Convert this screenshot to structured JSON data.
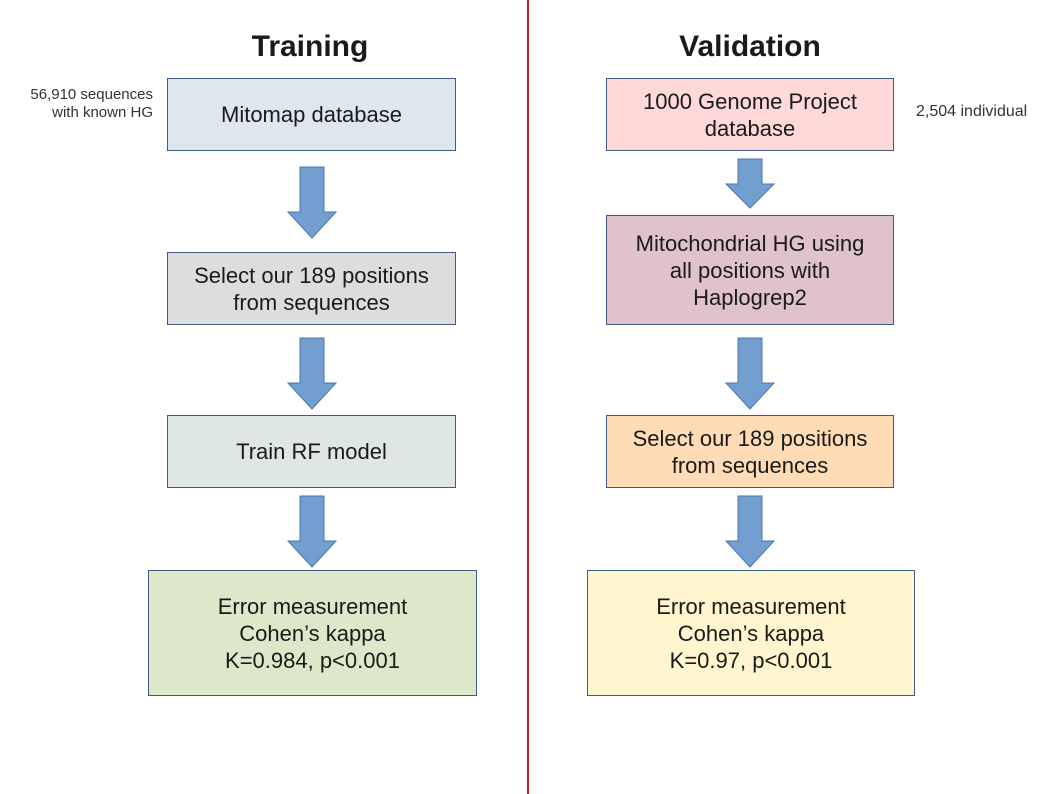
{
  "colors": {
    "divider": "#c0272d",
    "arrow_fill": "#729fcf",
    "arrow_stroke": "#4a77ad",
    "box_border": "#3f5a84"
  },
  "training": {
    "title": "Training",
    "note": "56,910 sequences\nwith known HG",
    "steps": [
      {
        "label": "Mitomap database",
        "color": "#dee6ef"
      },
      {
        "label": "Select our 189 positions\nfrom sequences",
        "color": "#dddddd"
      },
      {
        "label": "Train RF model",
        "color": "#dee7e5"
      },
      {
        "label": "Error measurement\nCohen’s kappa\nK=0.984, p<0.001",
        "color": "#dde8cb"
      }
    ]
  },
  "validation": {
    "title": "Validation",
    "note": "2,504 individual",
    "steps": [
      {
        "label": "1000 Genome Project\ndatabase",
        "color": "#ffd8d8"
      },
      {
        "label": "Mitochondrial HG using\nall positions with\nHaplogrep2",
        "color": "#e0c2cd"
      },
      {
        "label": "Select our 189 positions\nfrom sequences",
        "color": "#ffdbb6"
      },
      {
        "label": "Error measurement\nCohen’s kappa\nK=0.97, p<0.001",
        "color": "#fff5ce"
      }
    ]
  }
}
